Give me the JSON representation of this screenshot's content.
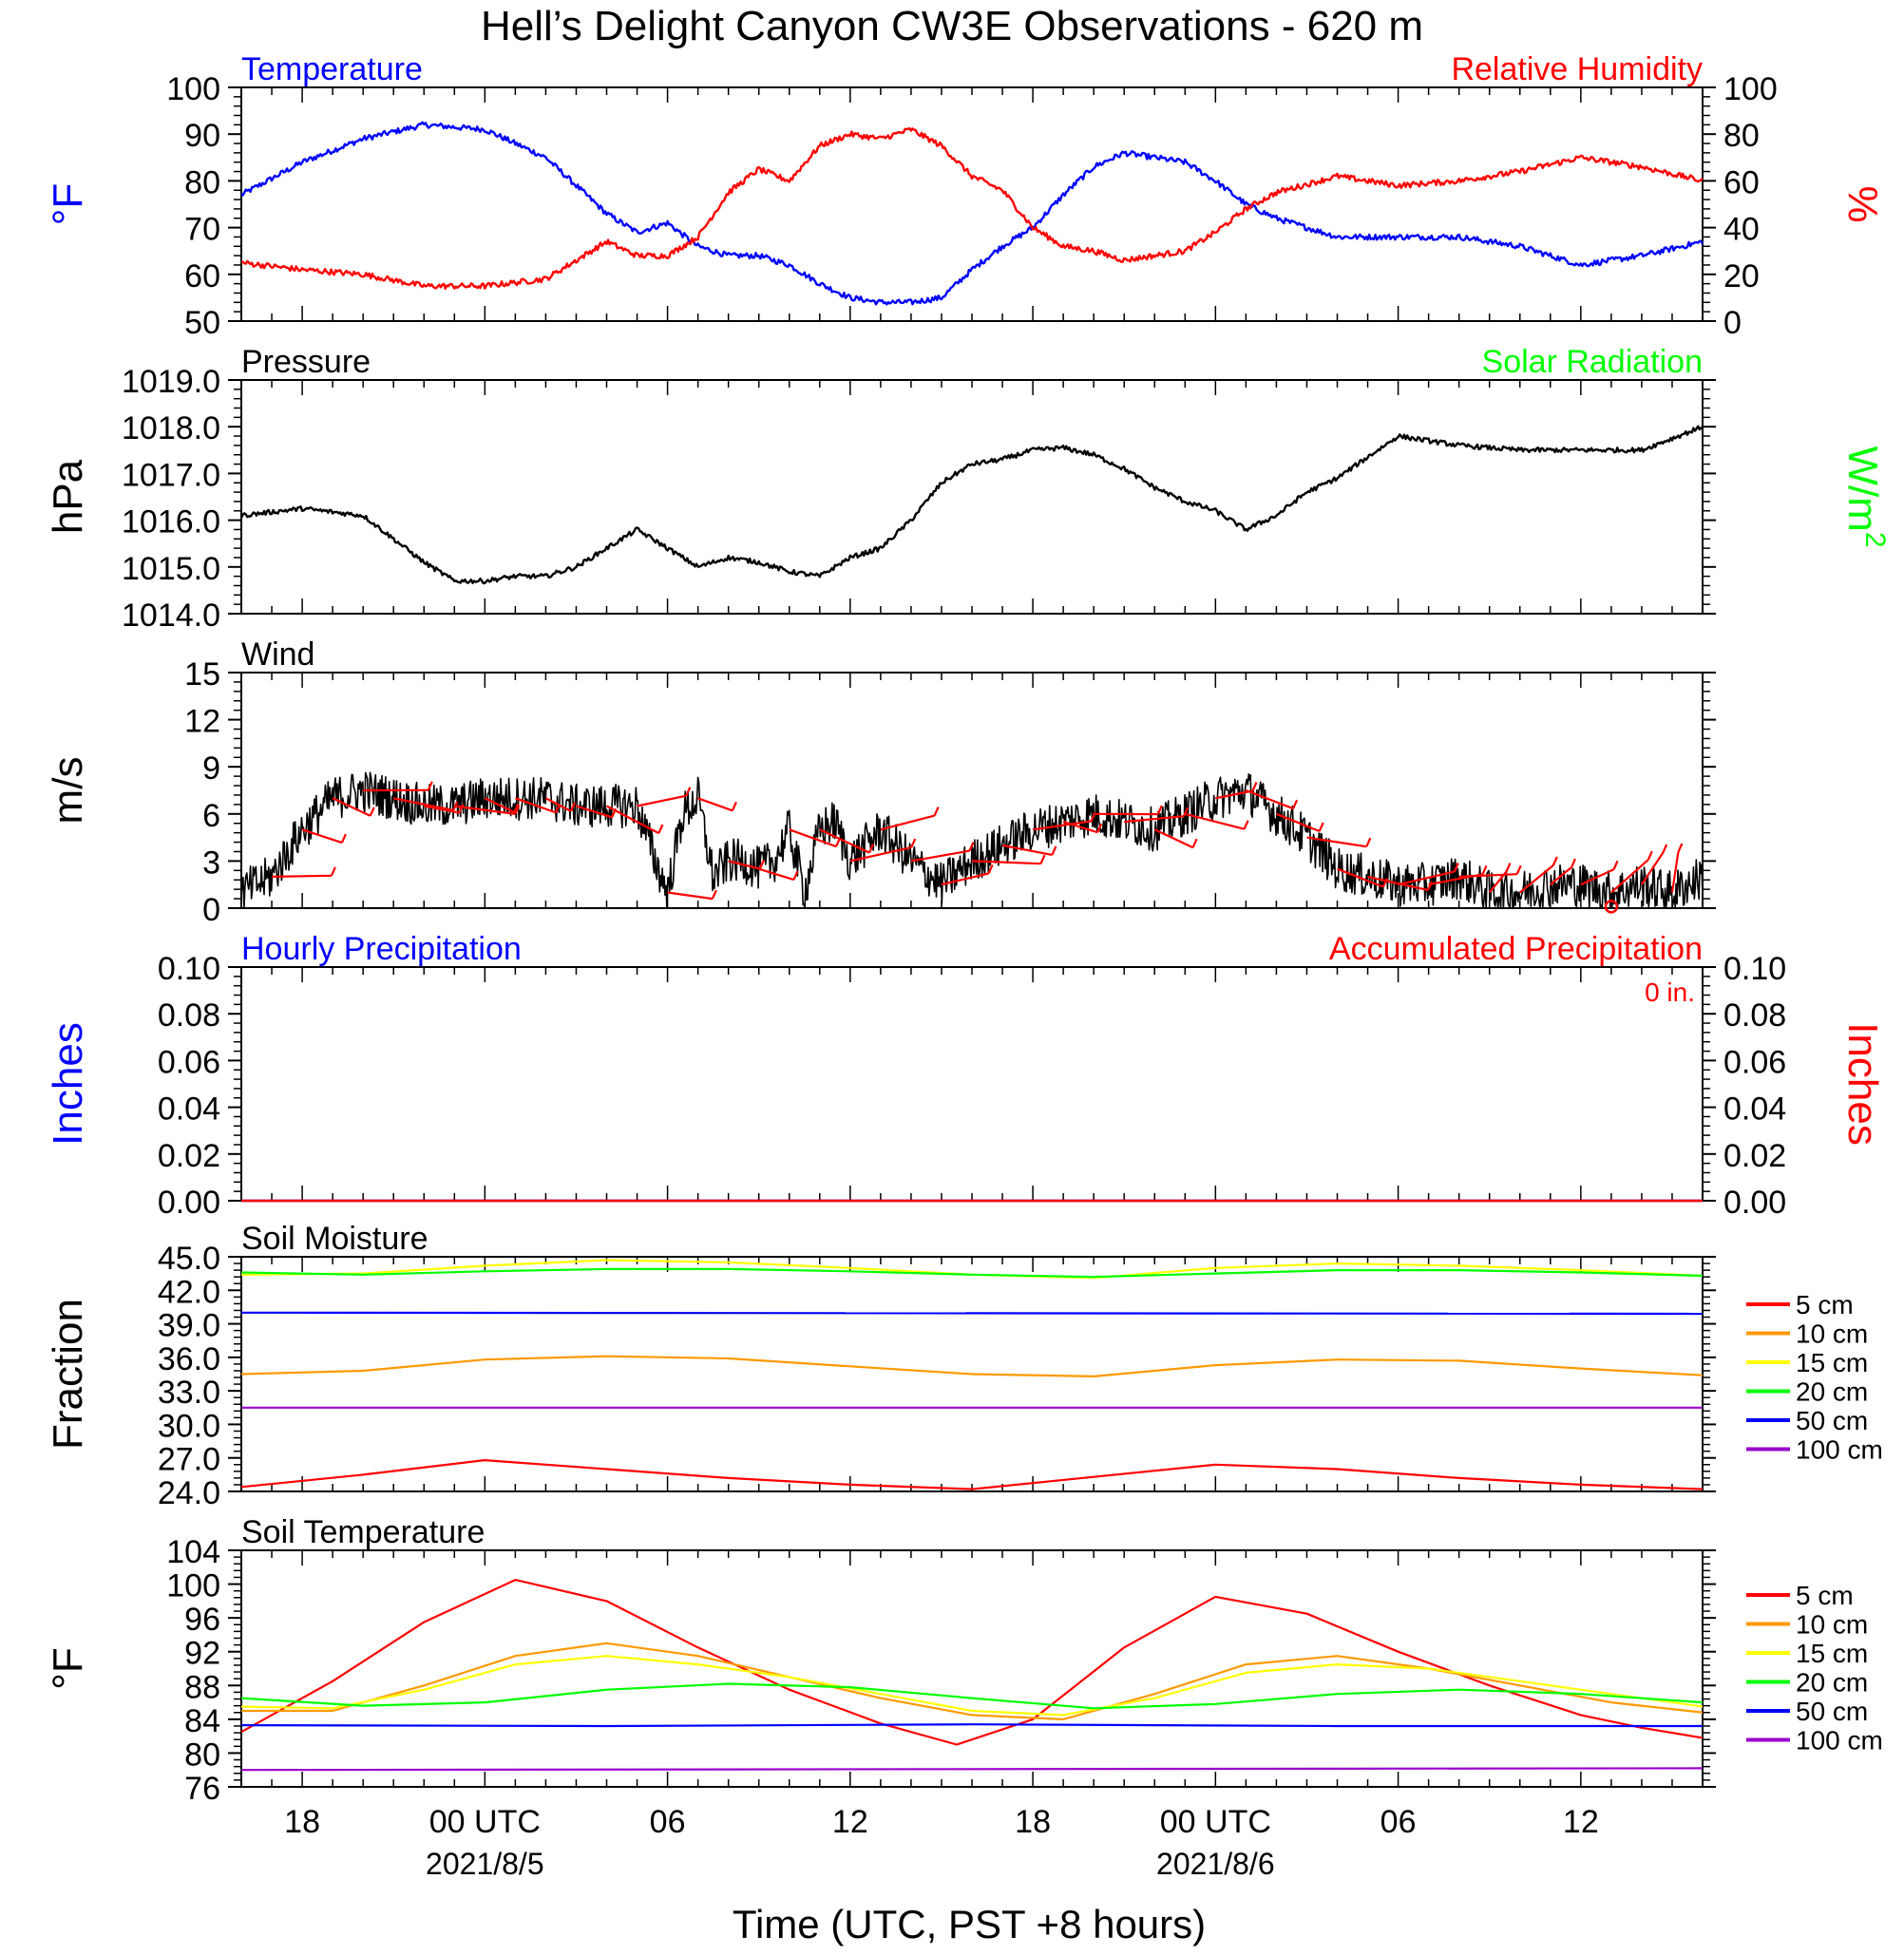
{
  "title": "Hell’s Delight Canyon CW3E Observations - 620 m",
  "xlabel": "Time (UTC, PST +8 hours)",
  "x_ticks": [
    {
      "h": 2,
      "label": "18",
      "date": ""
    },
    {
      "h": 8,
      "label": "00 UTC",
      "date": "2021/8/5"
    },
    {
      "h": 14,
      "label": "06",
      "date": ""
    },
    {
      "h": 20,
      "label": "12",
      "date": ""
    },
    {
      "h": 26,
      "label": "18",
      "date": ""
    },
    {
      "h": 32,
      "label": "00 UTC",
      "date": "2021/8/6"
    },
    {
      "h": 38,
      "label": "06",
      "date": ""
    },
    {
      "h": 44,
      "label": "12",
      "date": ""
    }
  ],
  "x_range_hours": [
    0,
    48
  ],
  "colors": {
    "red": "#ff0000",
    "blue": "#0000ff",
    "green": "#00ff00",
    "orange": "#ff9900",
    "yellow": "#ffff00",
    "purple": "#9900cc",
    "black": "#000000"
  },
  "chart_data": [
    {
      "type": "line",
      "id": "temp_rh",
      "left_title": "Temperature",
      "right_title": "Relative Humidity",
      "ylabel": "°F",
      "ylabel_right": "%",
      "ylim": [
        50,
        100
      ],
      "ylim_right": [
        0,
        100
      ],
      "yticks": [
        "50",
        "60",
        "70",
        "80",
        "90",
        "100"
      ],
      "yticks_right": [
        "0",
        "20",
        "40",
        "60",
        "80",
        "100"
      ],
      "series": [
        {
          "name": "Temperature",
          "color": "#0000ff",
          "axis": "left",
          "x": [
            0,
            2,
            4,
            6,
            8,
            10,
            11,
            12,
            13,
            14,
            15,
            16,
            17,
            18,
            19,
            20,
            21,
            22,
            23,
            24,
            25,
            26,
            27,
            28,
            29,
            30,
            31,
            32,
            33,
            34,
            36,
            38,
            40,
            42,
            44,
            46,
            48
          ],
          "y": [
            77,
            84,
            89,
            92,
            91,
            85,
            79,
            73,
            69,
            71,
            66,
            64,
            64,
            62,
            58,
            55,
            54,
            54,
            55,
            61,
            66,
            70,
            77,
            83,
            86,
            85,
            84,
            80,
            75,
            72,
            68,
            68,
            68,
            66,
            62,
            64,
            67
          ]
        },
        {
          "name": "Relative Humidity",
          "color": "#ff0000",
          "axis": "right",
          "x": [
            0,
            2,
            4,
            6,
            8,
            10,
            11,
            12,
            13,
            14,
            15,
            16,
            17,
            18,
            19,
            20,
            21,
            22,
            23,
            24,
            25,
            26,
            27,
            28,
            29,
            30,
            31,
            32,
            33,
            34,
            36,
            38,
            40,
            42,
            44,
            46,
            48
          ],
          "y": [
            25,
            22,
            20,
            15,
            15,
            18,
            26,
            34,
            28,
            28,
            36,
            55,
            65,
            60,
            75,
            80,
            78,
            82,
            75,
            62,
            56,
            40,
            32,
            30,
            26,
            28,
            30,
            38,
            48,
            55,
            62,
            58,
            60,
            64,
            70,
            66,
            60
          ]
        }
      ]
    },
    {
      "type": "line",
      "id": "pressure",
      "left_title": "Pressure",
      "right_title": "Solar Radiation",
      "ylabel": "hPa",
      "ylabel_right": "W/m",
      "ylabel_right_sup": "2",
      "ylim": [
        1014,
        1019
      ],
      "yticks": [
        "1014.0",
        "1015.0",
        "1016.0",
        "1017.0",
        "1018.0",
        "1019.0"
      ],
      "series": [
        {
          "name": "Pressure",
          "color": "#000000",
          "axis": "left",
          "x": [
            0,
            2,
            4,
            5,
            6,
            7,
            8,
            9,
            10,
            11,
            12,
            13,
            14,
            15,
            16,
            17,
            18,
            19,
            20,
            21,
            22,
            23,
            24,
            25,
            26,
            27,
            28,
            29,
            30,
            31,
            32,
            33,
            34,
            35,
            36,
            38,
            40,
            42,
            44,
            46,
            48
          ],
          "y": [
            1016.1,
            1016.25,
            1016.1,
            1015.6,
            1015.1,
            1014.7,
            1014.7,
            1014.8,
            1014.8,
            1015.0,
            1015.4,
            1015.8,
            1015.4,
            1015.0,
            1015.2,
            1015.1,
            1014.9,
            1014.8,
            1015.2,
            1015.4,
            1016.0,
            1016.8,
            1017.2,
            1017.3,
            1017.5,
            1017.55,
            1017.4,
            1017.1,
            1016.7,
            1016.4,
            1016.2,
            1015.8,
            1016.1,
            1016.6,
            1016.9,
            1017.8,
            1017.6,
            1017.5,
            1017.5,
            1017.5,
            1018.0
          ]
        }
      ]
    },
    {
      "type": "line",
      "id": "wind",
      "left_title": "Wind",
      "ylabel": "m/s",
      "ylim": [
        0,
        15
      ],
      "yticks": [
        "0",
        "3",
        "6",
        "9",
        "12",
        "15"
      ],
      "series": [
        {
          "name": "Wind",
          "color": "#000000",
          "axis": "left",
          "x": [
            0,
            1,
            2,
            3,
            4,
            5,
            6,
            7,
            8,
            9,
            10,
            11,
            12,
            13,
            13.6,
            14,
            14.5,
            15,
            15.5,
            16,
            16.5,
            17,
            17.5,
            18,
            18.5,
            19,
            19.5,
            20,
            21,
            22,
            23,
            24,
            25,
            26,
            27,
            28,
            29,
            30,
            31,
            32,
            33,
            34,
            35,
            36,
            37,
            38,
            39,
            40,
            41,
            42,
            43,
            44,
            45,
            46,
            47,
            48
          ],
          "y": [
            1,
            2,
            5,
            7,
            7.5,
            7,
            6.5,
            6.5,
            7,
            7,
            7,
            6.5,
            6.5,
            6.5,
            3,
            1,
            6,
            7,
            2,
            3,
            3,
            2.5,
            3,
            5,
            1,
            5,
            5.5,
            3,
            5,
            3,
            1.5,
            3,
            4,
            5,
            5.5,
            6,
            5.5,
            5,
            6,
            7,
            7.5,
            6,
            4.5,
            2.5,
            2,
            1.5,
            1.5,
            2,
            1,
            1,
            1.5,
            1.5,
            1,
            1.5,
            1,
            2
          ]
        }
      ],
      "barbs_note": "wind barbs"
    },
    {
      "type": "bar",
      "id": "precip",
      "left_title": "Hourly Precipitation",
      "right_title": "Accumulated Precipitation",
      "annotation": "0 in.",
      "ylabel": "Inches",
      "ylabel_right": "Inches",
      "ylim": [
        0,
        0.1
      ],
      "yticks": [
        "0.00",
        "0.02",
        "0.04",
        "0.06",
        "0.08",
        "0.10"
      ],
      "yticks_right": [
        "0.00",
        "0.02",
        "0.04",
        "0.06",
        "0.08",
        "0.10"
      ],
      "series": [
        {
          "name": "Hourly Precipitation",
          "color": "#0000ff",
          "x": [
            0,
            48
          ],
          "y": [
            0,
            0
          ]
        },
        {
          "name": "Accumulated Precipitation",
          "color": "#ff0000",
          "x": [
            0,
            48
          ],
          "y": [
            0,
            0
          ]
        }
      ]
    },
    {
      "type": "line",
      "id": "soil_moisture",
      "left_title": "Soil Moisture",
      "ylabel": "Fraction",
      "ylim": [
        24,
        45
      ],
      "yticks": [
        "24.0",
        "27.0",
        "30.0",
        "33.0",
        "36.0",
        "39.0",
        "42.0",
        "45.0"
      ],
      "legend": "right",
      "series": [
        {
          "name": "5 cm",
          "color": "#ff0000",
          "x": [
            0,
            4,
            8,
            12,
            16,
            20,
            24,
            28,
            32,
            36,
            40,
            44,
            48
          ],
          "y": [
            24.4,
            25.5,
            26.8,
            26.0,
            25.2,
            24.6,
            24.2,
            25.3,
            26.4,
            26.0,
            25.2,
            24.6,
            24.2
          ]
        },
        {
          "name": "10 cm",
          "color": "#ff9900",
          "x": [
            0,
            4,
            8,
            12,
            16,
            20,
            24,
            28,
            32,
            36,
            40,
            44,
            48
          ],
          "y": [
            34.5,
            34.8,
            35.8,
            36.1,
            35.9,
            35.2,
            34.5,
            34.3,
            35.3,
            35.8,
            35.7,
            35.0,
            34.4
          ]
        },
        {
          "name": "15 cm",
          "color": "#ffff00",
          "x": [
            0,
            4,
            8,
            12,
            16,
            20,
            24,
            28,
            32,
            36,
            40,
            44,
            48
          ],
          "y": [
            43.4,
            43.5,
            44.2,
            44.7,
            44.5,
            44.0,
            43.4,
            43.1,
            44.0,
            44.4,
            44.2,
            43.8,
            43.3
          ]
        },
        {
          "name": "20 cm",
          "color": "#00ff00",
          "x": [
            0,
            4,
            8,
            12,
            16,
            20,
            24,
            28,
            32,
            36,
            40,
            44,
            48
          ],
          "y": [
            43.6,
            43.4,
            43.7,
            43.9,
            43.9,
            43.7,
            43.4,
            43.2,
            43.5,
            43.8,
            43.8,
            43.6,
            43.3
          ]
        },
        {
          "name": "50 cm",
          "color": "#0000ff",
          "x": [
            0,
            48
          ],
          "y": [
            40.0,
            39.9
          ]
        },
        {
          "name": "100 cm",
          "color": "#9900cc",
          "x": [
            0,
            48
          ],
          "y": [
            31.5,
            31.5
          ]
        }
      ]
    },
    {
      "type": "line",
      "id": "soil_temperature",
      "left_title": "Soil Temperature",
      "ylabel": "°F",
      "ylim": [
        76,
        104
      ],
      "yticks": [
        "76",
        "80",
        "84",
        "88",
        "92",
        "96",
        "100",
        "104"
      ],
      "legend": "right",
      "series": [
        {
          "name": "5 cm",
          "color": "#ff0000",
          "x": [
            0,
            3,
            6,
            9,
            12,
            15,
            18,
            21,
            23.5,
            26,
            29,
            32,
            35,
            38,
            41,
            44,
            46,
            48
          ],
          "y": [
            82.5,
            88.5,
            95.5,
            100.5,
            98.0,
            92.5,
            87.5,
            83.5,
            81.0,
            84.0,
            92.5,
            98.5,
            96.5,
            92.0,
            88.0,
            84.5,
            83.0,
            81.8
          ]
        },
        {
          "name": "10 cm",
          "color": "#ff9900",
          "x": [
            0,
            3,
            6,
            9,
            12,
            15,
            18,
            21,
            24,
            27,
            30,
            33,
            36,
            39,
            42,
            45,
            48
          ],
          "y": [
            85.0,
            85.0,
            88.0,
            91.5,
            93.0,
            91.5,
            89.0,
            86.5,
            84.5,
            84.0,
            87.0,
            90.5,
            91.5,
            90.0,
            88.0,
            86.0,
            84.8
          ]
        },
        {
          "name": "15 cm",
          "color": "#ffff00",
          "x": [
            0,
            3,
            6,
            9,
            12,
            15,
            18,
            21,
            24,
            27,
            30,
            33,
            36,
            39,
            42,
            45,
            48
          ],
          "y": [
            85.5,
            85.3,
            87.5,
            90.5,
            91.5,
            90.5,
            89.0,
            87.0,
            85.0,
            84.5,
            86.5,
            89.5,
            90.5,
            90.0,
            88.5,
            87.0,
            85.5
          ]
        },
        {
          "name": "20 cm",
          "color": "#00ff00",
          "x": [
            0,
            4,
            8,
            12,
            16,
            20,
            24,
            28,
            32,
            36,
            40,
            44,
            48
          ],
          "y": [
            86.5,
            85.6,
            86.0,
            87.5,
            88.2,
            87.8,
            86.5,
            85.3,
            85.8,
            87.0,
            87.5,
            87.0,
            86.0
          ]
        },
        {
          "name": "50 cm",
          "color": "#0000ff",
          "x": [
            0,
            12,
            24,
            36,
            48
          ],
          "y": [
            83.3,
            83.2,
            83.4,
            83.2,
            83.2
          ]
        },
        {
          "name": "100 cm",
          "color": "#9900cc",
          "x": [
            0,
            24,
            48
          ],
          "y": [
            78.0,
            78.1,
            78.2
          ]
        }
      ]
    }
  ]
}
